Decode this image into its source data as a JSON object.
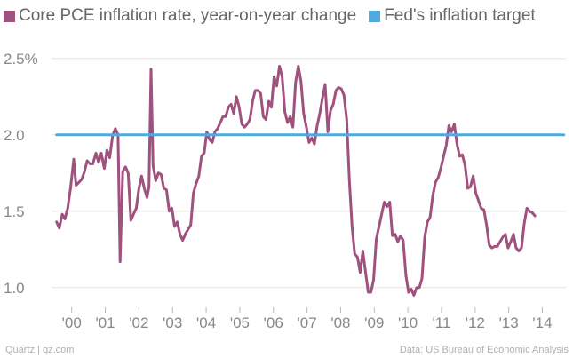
{
  "chart_data": {
    "type": "line",
    "title": "",
    "xlabel": "",
    "ylabel": "",
    "xlim": [
      1999.4,
      2014.7
    ],
    "ylim": [
      0.9,
      2.65
    ],
    "yticks": [
      1.0,
      1.5,
      2.0,
      2.5
    ],
    "ytick_labels": [
      "1.0",
      "1.5",
      "2.0",
      "2.5%"
    ],
    "xticks": [
      2000,
      2001,
      2002,
      2003,
      2004,
      2005,
      2006,
      2007,
      2008,
      2009,
      2010,
      2011,
      2012,
      2013,
      2014
    ],
    "xtick_labels": [
      "'00",
      "'01",
      "'02",
      "'03",
      "'04",
      "'05",
      "'06",
      "'07",
      "'08",
      "'09",
      "'10",
      "'11",
      "'12",
      "'13",
      "'14"
    ],
    "grid": "horizontal",
    "legend_position": "top-left",
    "series": [
      {
        "name": "Core PCE inflation rate, year-on-year change",
        "color": "#a0527f",
        "points": [
          [
            1999.55,
            1.43
          ],
          [
            1999.63,
            1.39
          ],
          [
            1999.72,
            1.48
          ],
          [
            1999.8,
            1.45
          ],
          [
            1999.88,
            1.52
          ],
          [
            1999.97,
            1.66
          ],
          [
            2000.06,
            1.84
          ],
          [
            2000.13,
            1.67
          ],
          [
            2000.22,
            1.69
          ],
          [
            2000.3,
            1.71
          ],
          [
            2000.38,
            1.76
          ],
          [
            2000.46,
            1.83
          ],
          [
            2000.55,
            1.81
          ],
          [
            2000.63,
            1.81
          ],
          [
            2000.72,
            1.88
          ],
          [
            2000.8,
            1.82
          ],
          [
            2000.88,
            1.88
          ],
          [
            2000.97,
            1.78
          ],
          [
            2001.05,
            1.9
          ],
          [
            2001.13,
            1.85
          ],
          [
            2001.22,
            2.0
          ],
          [
            2001.3,
            2.04
          ],
          [
            2001.38,
            2.0
          ],
          [
            2001.44,
            1.17
          ],
          [
            2001.52,
            1.76
          ],
          [
            2001.6,
            1.79
          ],
          [
            2001.68,
            1.75
          ],
          [
            2001.76,
            1.44
          ],
          [
            2001.84,
            1.48
          ],
          [
            2001.92,
            1.52
          ],
          [
            2002.0,
            1.65
          ],
          [
            2002.08,
            1.73
          ],
          [
            2002.16,
            1.65
          ],
          [
            2002.24,
            1.59
          ],
          [
            2002.3,
            1.66
          ],
          [
            2002.36,
            2.43
          ],
          [
            2002.42,
            1.8
          ],
          [
            2002.5,
            1.7
          ],
          [
            2002.58,
            1.75
          ],
          [
            2002.66,
            1.74
          ],
          [
            2002.74,
            1.65
          ],
          [
            2002.82,
            1.64
          ],
          [
            2002.9,
            1.5
          ],
          [
            2002.98,
            1.52
          ],
          [
            2003.06,
            1.4
          ],
          [
            2003.14,
            1.43
          ],
          [
            2003.22,
            1.35
          ],
          [
            2003.3,
            1.31
          ],
          [
            2003.38,
            1.35
          ],
          [
            2003.46,
            1.38
          ],
          [
            2003.54,
            1.41
          ],
          [
            2003.62,
            1.62
          ],
          [
            2003.7,
            1.68
          ],
          [
            2003.78,
            1.73
          ],
          [
            2003.86,
            1.86
          ],
          [
            2003.94,
            1.88
          ],
          [
            2004.02,
            2.02
          ],
          [
            2004.1,
            1.97
          ],
          [
            2004.18,
            1.95
          ],
          [
            2004.26,
            2.02
          ],
          [
            2004.34,
            2.04
          ],
          [
            2004.42,
            2.08
          ],
          [
            2004.5,
            2.12
          ],
          [
            2004.58,
            2.12
          ],
          [
            2004.66,
            2.18
          ],
          [
            2004.74,
            2.2
          ],
          [
            2004.82,
            2.14
          ],
          [
            2004.9,
            2.25
          ],
          [
            2004.98,
            2.18
          ],
          [
            2005.06,
            2.07
          ],
          [
            2005.14,
            2.05
          ],
          [
            2005.22,
            2.07
          ],
          [
            2005.3,
            2.1
          ],
          [
            2005.38,
            2.22
          ],
          [
            2005.46,
            2.29
          ],
          [
            2005.54,
            2.29
          ],
          [
            2005.62,
            2.27
          ],
          [
            2005.7,
            2.12
          ],
          [
            2005.78,
            2.1
          ],
          [
            2005.86,
            2.22
          ],
          [
            2005.94,
            2.18
          ],
          [
            2006.02,
            2.38
          ],
          [
            2006.1,
            2.32
          ],
          [
            2006.18,
            2.45
          ],
          [
            2006.26,
            2.38
          ],
          [
            2006.34,
            2.15
          ],
          [
            2006.42,
            2.08
          ],
          [
            2006.5,
            2.12
          ],
          [
            2006.58,
            2.05
          ],
          [
            2006.66,
            2.34
          ],
          [
            2006.74,
            2.45
          ],
          [
            2006.82,
            2.35
          ],
          [
            2006.9,
            2.14
          ],
          [
            2006.98,
            2.05
          ],
          [
            2007.06,
            1.95
          ],
          [
            2007.14,
            1.98
          ],
          [
            2007.22,
            1.94
          ],
          [
            2007.3,
            2.06
          ],
          [
            2007.38,
            2.14
          ],
          [
            2007.46,
            2.24
          ],
          [
            2007.54,
            2.33
          ],
          [
            2007.62,
            2.02
          ],
          [
            2007.7,
            2.16
          ],
          [
            2007.78,
            2.2
          ],
          [
            2007.86,
            2.29
          ],
          [
            2007.94,
            2.31
          ],
          [
            2008.02,
            2.3
          ],
          [
            2008.1,
            2.26
          ],
          [
            2008.18,
            2.1
          ],
          [
            2008.26,
            1.7
          ],
          [
            2008.34,
            1.4
          ],
          [
            2008.42,
            1.22
          ],
          [
            2008.5,
            1.2
          ],
          [
            2008.58,
            1.1
          ],
          [
            2008.66,
            1.24
          ],
          [
            2008.74,
            1.1
          ],
          [
            2008.82,
            0.97
          ],
          [
            2008.9,
            0.97
          ],
          [
            2008.98,
            1.05
          ],
          [
            2009.06,
            1.32
          ],
          [
            2009.14,
            1.4
          ],
          [
            2009.22,
            1.48
          ],
          [
            2009.3,
            1.56
          ],
          [
            2009.38,
            1.53
          ],
          [
            2009.46,
            1.56
          ],
          [
            2009.54,
            1.34
          ],
          [
            2009.62,
            1.35
          ],
          [
            2009.7,
            1.3
          ],
          [
            2009.78,
            1.34
          ],
          [
            2009.86,
            1.31
          ],
          [
            2009.94,
            1.08
          ],
          [
            2010.02,
            0.97
          ],
          [
            2010.1,
            0.99
          ],
          [
            2010.18,
            0.95
          ],
          [
            2010.26,
            1.0
          ],
          [
            2010.34,
            1.0
          ],
          [
            2010.42,
            1.06
          ],
          [
            2010.5,
            1.33
          ],
          [
            2010.58,
            1.43
          ],
          [
            2010.66,
            1.46
          ],
          [
            2010.74,
            1.6
          ],
          [
            2010.82,
            1.69
          ],
          [
            2010.9,
            1.72
          ],
          [
            2010.98,
            1.78
          ],
          [
            2011.06,
            1.86
          ],
          [
            2011.14,
            1.93
          ],
          [
            2011.22,
            2.06
          ],
          [
            2011.3,
            2.02
          ],
          [
            2011.38,
            2.07
          ],
          [
            2011.46,
            1.94
          ],
          [
            2011.54,
            1.86
          ],
          [
            2011.62,
            1.87
          ],
          [
            2011.7,
            1.8
          ],
          [
            2011.78,
            1.65
          ],
          [
            2011.86,
            1.66
          ],
          [
            2011.94,
            1.73
          ],
          [
            2012.02,
            1.62
          ],
          [
            2012.1,
            1.57
          ],
          [
            2012.18,
            1.52
          ],
          [
            2012.26,
            1.51
          ],
          [
            2012.34,
            1.41
          ],
          [
            2012.42,
            1.28
          ],
          [
            2012.5,
            1.26
          ],
          [
            2012.58,
            1.27
          ],
          [
            2012.66,
            1.27
          ],
          [
            2012.74,
            1.3
          ],
          [
            2012.82,
            1.33
          ],
          [
            2012.9,
            1.35
          ],
          [
            2012.98,
            1.26
          ],
          [
            2013.06,
            1.3
          ],
          [
            2013.14,
            1.35
          ],
          [
            2013.22,
            1.26
          ],
          [
            2013.3,
            1.24
          ],
          [
            2013.38,
            1.26
          ],
          [
            2013.46,
            1.42
          ],
          [
            2013.54,
            1.52
          ],
          [
            2013.62,
            1.5
          ],
          [
            2013.7,
            1.49
          ],
          [
            2013.78,
            1.47
          ]
        ]
      },
      {
        "name": "Fed's inflation target",
        "color": "#4fabdc",
        "points": [
          [
            1999.55,
            2.0
          ],
          [
            2014.64,
            2.0
          ]
        ]
      }
    ]
  },
  "footer": {
    "source_left": "Quartz | qz.com",
    "source_right": "Data: US Bureau of Economic Analysis"
  }
}
